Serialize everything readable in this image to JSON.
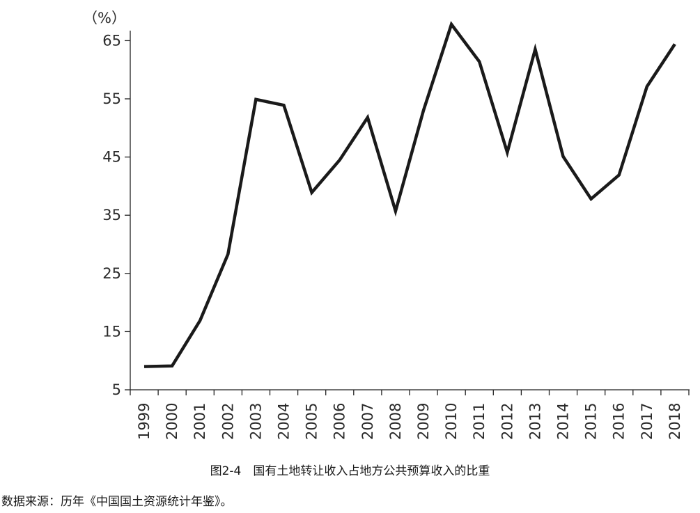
{
  "caption": "图2-4　国有土地转让收入占地方公共预算收入的比重",
  "source": "数据来源：历年《中国国土资源统计年鉴》。",
  "chart_data": {
    "type": "line",
    "unit_label": "（%）",
    "categories": [
      "1999",
      "2000",
      "2001",
      "2002",
      "2003",
      "2004",
      "2005",
      "2006",
      "2007",
      "2008",
      "2009",
      "2010",
      "2011",
      "2012",
      "2013",
      "2014",
      "2015",
      "2016",
      "2017",
      "2018"
    ],
    "series": [
      {
        "values": [
          9.0,
          9.1,
          16.9,
          28.3,
          54.9,
          53.9,
          38.9,
          44.5,
          51.8,
          35.7,
          53.0,
          67.8,
          61.4,
          45.8,
          63.5,
          45.1,
          37.8,
          41.9,
          57.1,
          64.4
        ]
      }
    ],
    "yticks": [
      5,
      15,
      25,
      35,
      45,
      55,
      65
    ],
    "ylim": [
      5,
      68
    ],
    "grid": false,
    "line_color": "#1a1a1a",
    "axis_color": "#222222"
  }
}
